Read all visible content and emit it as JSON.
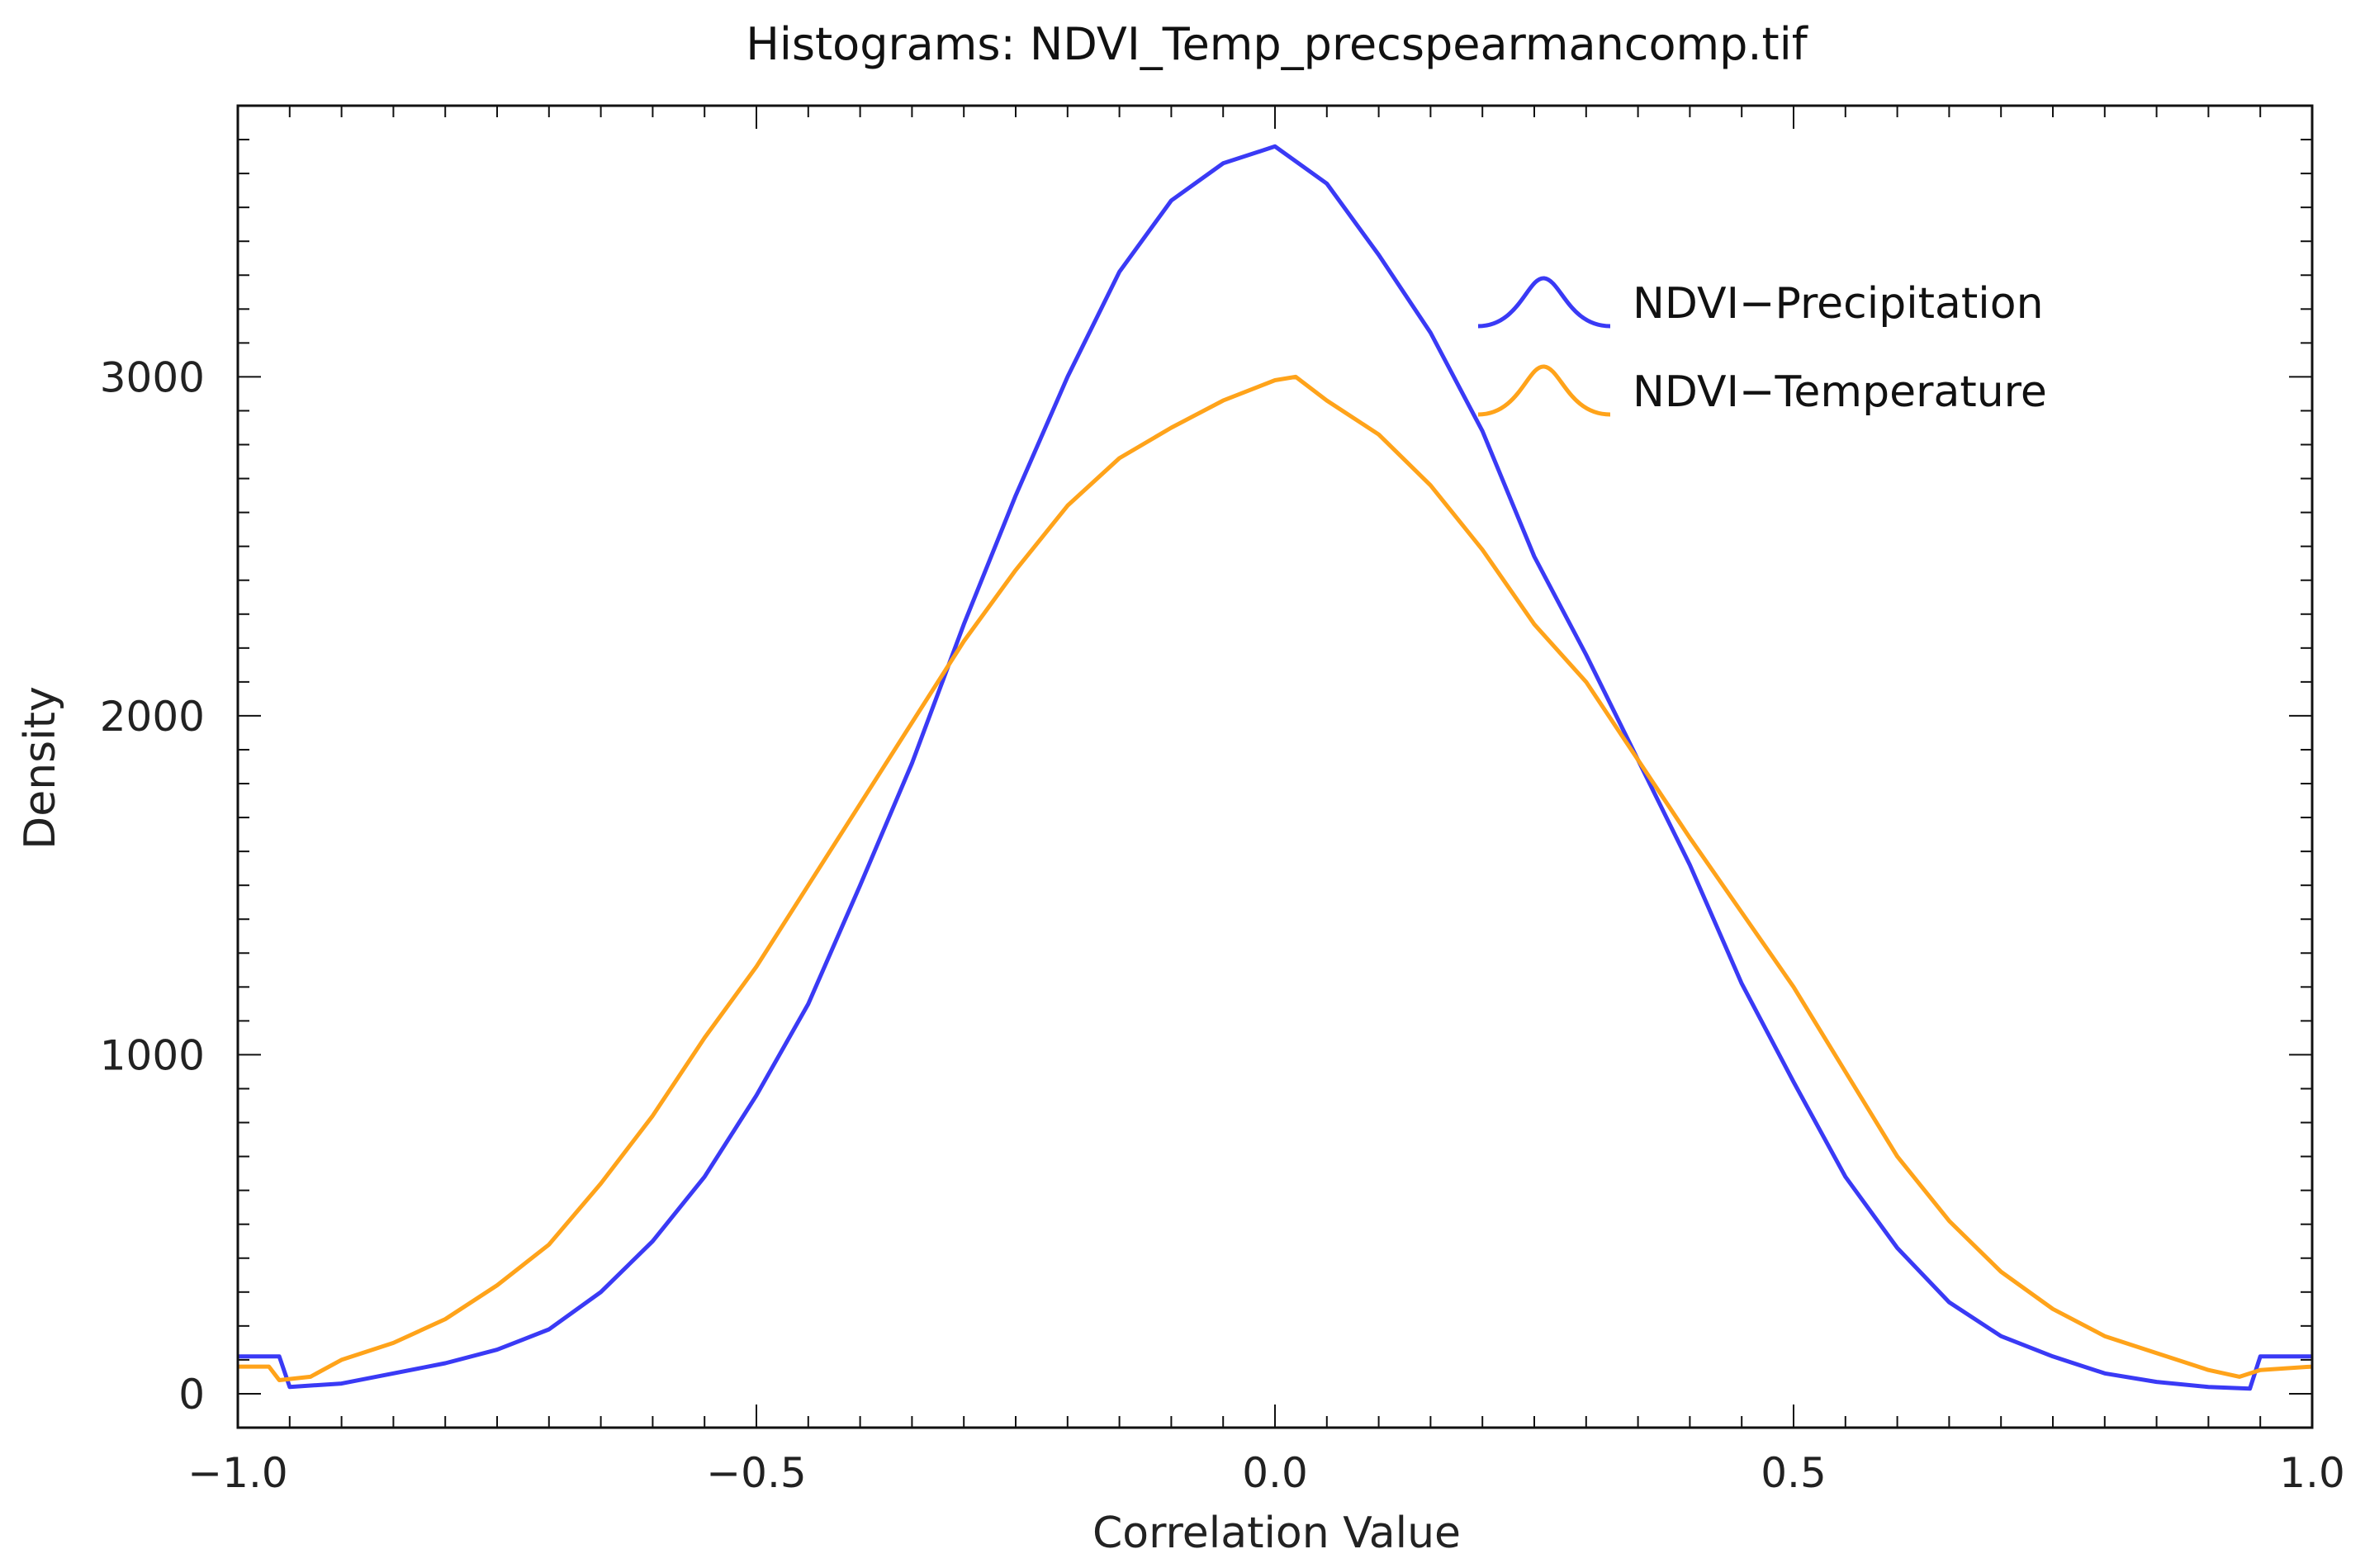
{
  "chart_data": {
    "type": "line",
    "title": "Histograms: NDVI_Temp_precspearmancomp.tif",
    "xlabel": "Correlation Value",
    "ylabel": "Density",
    "xlim": [
      -1.0,
      1.0
    ],
    "ylim": [
      -100,
      3800
    ],
    "x_ticks": [
      -1.0,
      -0.5,
      0.0,
      0.5,
      1.0
    ],
    "x_tick_labels": [
      "−1.0",
      "−0.5",
      "0.0",
      "0.5",
      "1.0"
    ],
    "y_ticks": [
      0,
      1000,
      2000,
      3000
    ],
    "y_tick_labels": [
      "0",
      "1000",
      "2000",
      "3000"
    ],
    "legend_position": "top-right",
    "series": [
      {
        "name": "NDVI−Precipitation",
        "color": "#3a3af5",
        "points": [
          [
            -1.0,
            110
          ],
          [
            -0.96,
            110
          ],
          [
            -0.95,
            20
          ],
          [
            -0.9,
            30
          ],
          [
            -0.85,
            60
          ],
          [
            -0.8,
            90
          ],
          [
            -0.75,
            130
          ],
          [
            -0.7,
            190
          ],
          [
            -0.65,
            300
          ],
          [
            -0.6,
            450
          ],
          [
            -0.55,
            640
          ],
          [
            -0.5,
            880
          ],
          [
            -0.45,
            1150
          ],
          [
            -0.4,
            1500
          ],
          [
            -0.35,
            1860
          ],
          [
            -0.3,
            2270
          ],
          [
            -0.25,
            2650
          ],
          [
            -0.2,
            3000
          ],
          [
            -0.15,
            3310
          ],
          [
            -0.1,
            3520
          ],
          [
            -0.05,
            3630
          ],
          [
            0.0,
            3680
          ],
          [
            0.05,
            3570
          ],
          [
            0.1,
            3360
          ],
          [
            0.15,
            3130
          ],
          [
            0.2,
            2840
          ],
          [
            0.25,
            2470
          ],
          [
            0.3,
            2180
          ],
          [
            0.35,
            1870
          ],
          [
            0.4,
            1560
          ],
          [
            0.45,
            1210
          ],
          [
            0.5,
            920
          ],
          [
            0.55,
            640
          ],
          [
            0.6,
            430
          ],
          [
            0.65,
            270
          ],
          [
            0.7,
            170
          ],
          [
            0.75,
            110
          ],
          [
            0.8,
            60
          ],
          [
            0.85,
            35
          ],
          [
            0.9,
            20
          ],
          [
            0.94,
            15
          ],
          [
            0.95,
            110
          ],
          [
            1.0,
            110
          ]
        ]
      },
      {
        "name": "NDVI−Temperature",
        "color": "#ffa31a",
        "points": [
          [
            -1.0,
            80
          ],
          [
            -0.97,
            80
          ],
          [
            -0.96,
            40
          ],
          [
            -0.93,
            50
          ],
          [
            -0.9,
            100
          ],
          [
            -0.85,
            150
          ],
          [
            -0.8,
            220
          ],
          [
            -0.75,
            320
          ],
          [
            -0.7,
            440
          ],
          [
            -0.65,
            620
          ],
          [
            -0.6,
            820
          ],
          [
            -0.55,
            1050
          ],
          [
            -0.5,
            1260
          ],
          [
            -0.45,
            1500
          ],
          [
            -0.4,
            1740
          ],
          [
            -0.35,
            1980
          ],
          [
            -0.3,
            2220
          ],
          [
            -0.25,
            2430
          ],
          [
            -0.2,
            2620
          ],
          [
            -0.15,
            2760
          ],
          [
            -0.1,
            2850
          ],
          [
            -0.05,
            2930
          ],
          [
            0.0,
            2990
          ],
          [
            0.02,
            3000
          ],
          [
            0.05,
            2930
          ],
          [
            0.1,
            2830
          ],
          [
            0.15,
            2680
          ],
          [
            0.2,
            2490
          ],
          [
            0.25,
            2270
          ],
          [
            0.3,
            2100
          ],
          [
            0.35,
            1870
          ],
          [
            0.4,
            1640
          ],
          [
            0.45,
            1420
          ],
          [
            0.5,
            1200
          ],
          [
            0.55,
            950
          ],
          [
            0.6,
            700
          ],
          [
            0.65,
            510
          ],
          [
            0.7,
            360
          ],
          [
            0.75,
            250
          ],
          [
            0.8,
            170
          ],
          [
            0.85,
            120
          ],
          [
            0.9,
            70
          ],
          [
            0.93,
            50
          ],
          [
            0.95,
            70
          ],
          [
            1.0,
            80
          ]
        ]
      }
    ]
  }
}
